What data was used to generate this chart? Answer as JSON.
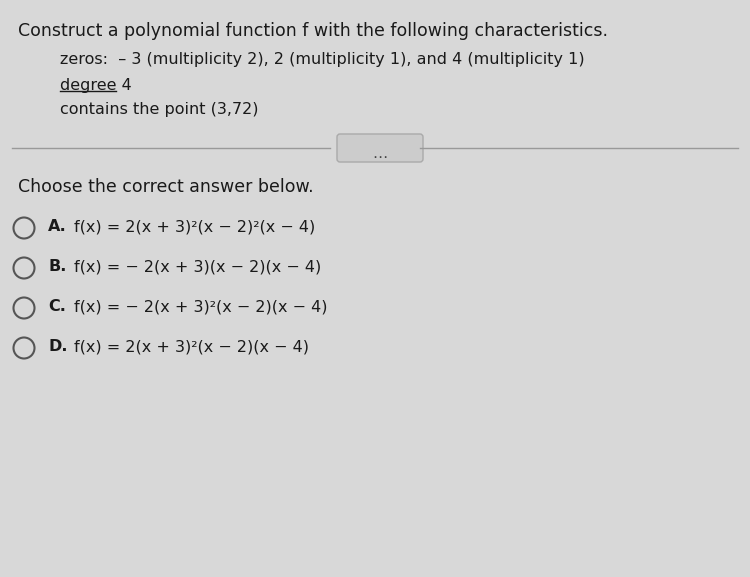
{
  "background_color": "#d8d8d8",
  "title_line": "Construct a polynomial function f with the following characteristics.",
  "bullet1": "zeros:  – 3 (multiplicity 2), 2 (multiplicity 1), and 4 (multiplicity 1)",
  "bullet2": "degree 4",
  "bullet3": "contains the point (3,72)",
  "choose_text": "Choose the correct answer below.",
  "opt_A_label": "A.",
  "opt_A_formula": "f(x) = 2(x + 3)²(x − 2)²(x − 4)",
  "opt_B_label": "B.",
  "opt_B_formula": "f(x) = − 2(x + 3)(x − 2)(x − 4)",
  "opt_C_label": "C.",
  "opt_C_formula": "f(x) = − 2(x + 3)²(x − 2)(x − 4)",
  "opt_D_label": "D.",
  "opt_D_formula": "f(x) = 2(x + 3)²(x − 2)(x − 4)",
  "font_color": "#1a1a1a",
  "circle_color": "#555555",
  "line_color": "#999999",
  "dots_color": "#444444",
  "ellipse_face": "#cccccc",
  "ellipse_edge": "#aaaaaa"
}
